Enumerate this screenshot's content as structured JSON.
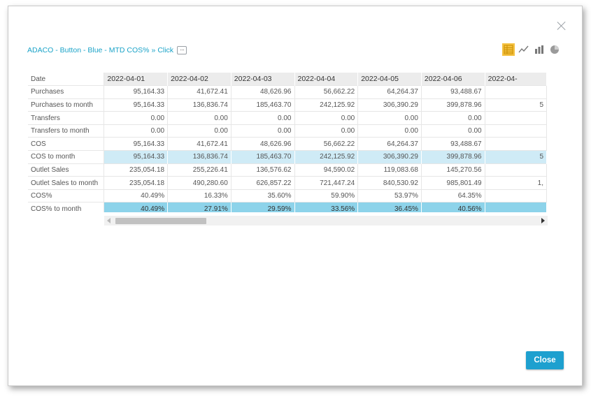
{
  "breadcrumb": {
    "part1": "ADACO - Button - Blue - MTD COS%",
    "separator": "»",
    "part2": "Click",
    "more": "···"
  },
  "view_switch": [
    {
      "icon": "table-icon",
      "active": true
    },
    {
      "icon": "line-chart-icon",
      "active": false
    },
    {
      "icon": "bar-chart-icon",
      "active": false
    },
    {
      "icon": "pie-chart-icon",
      "active": false
    }
  ],
  "table": {
    "header_label": "Date",
    "columns": [
      "2022-04-01",
      "2022-04-02",
      "2022-04-03",
      "2022-04-04",
      "2022-04-05",
      "2022-04-06",
      "2022-04-"
    ],
    "rows": [
      {
        "label": "Purchases",
        "highlight": "",
        "values": [
          "95,164.33",
          "41,672.41",
          "48,626.96",
          "56,662.22",
          "64,264.37",
          "93,488.67",
          ""
        ]
      },
      {
        "label": "Purchases to month",
        "highlight": "",
        "values": [
          "95,164.33",
          "136,836.74",
          "185,463.70",
          "242,125.92",
          "306,390.29",
          "399,878.96",
          "5"
        ]
      },
      {
        "label": "Transfers",
        "highlight": "",
        "values": [
          "0.00",
          "0.00",
          "0.00",
          "0.00",
          "0.00",
          "0.00",
          ""
        ]
      },
      {
        "label": "Transfers to month",
        "highlight": "",
        "values": [
          "0.00",
          "0.00",
          "0.00",
          "0.00",
          "0.00",
          "0.00",
          ""
        ]
      },
      {
        "label": "COS",
        "highlight": "",
        "values": [
          "95,164.33",
          "41,672.41",
          "48,626.96",
          "56,662.22",
          "64,264.37",
          "93,488.67",
          ""
        ]
      },
      {
        "label": "COS to month",
        "highlight": "light",
        "values": [
          "95,164.33",
          "136,836.74",
          "185,463.70",
          "242,125.92",
          "306,390.29",
          "399,878.96",
          "5"
        ]
      },
      {
        "label": "Outlet Sales",
        "highlight": "",
        "values": [
          "235,054.18",
          "255,226.41",
          "136,576.62",
          "94,590.02",
          "119,083.68",
          "145,270.56",
          ""
        ]
      },
      {
        "label": "Outlet Sales to month",
        "highlight": "",
        "values": [
          "235,054.18",
          "490,280.60",
          "626,857.22",
          "721,447.24",
          "840,530.92",
          "985,801.49",
          "1,"
        ]
      },
      {
        "label": "COS%",
        "highlight": "",
        "values": [
          "40.49%",
          "16.33%",
          "35.60%",
          "59.90%",
          "53.97%",
          "64.35%",
          ""
        ]
      },
      {
        "label": "COS% to month",
        "highlight": "strong",
        "values": [
          "40.49%",
          "27.91%",
          "29.59%",
          "33.56%",
          "36.45%",
          "40.56%",
          ""
        ]
      }
    ]
  },
  "footer": {
    "close_label": "Close"
  }
}
